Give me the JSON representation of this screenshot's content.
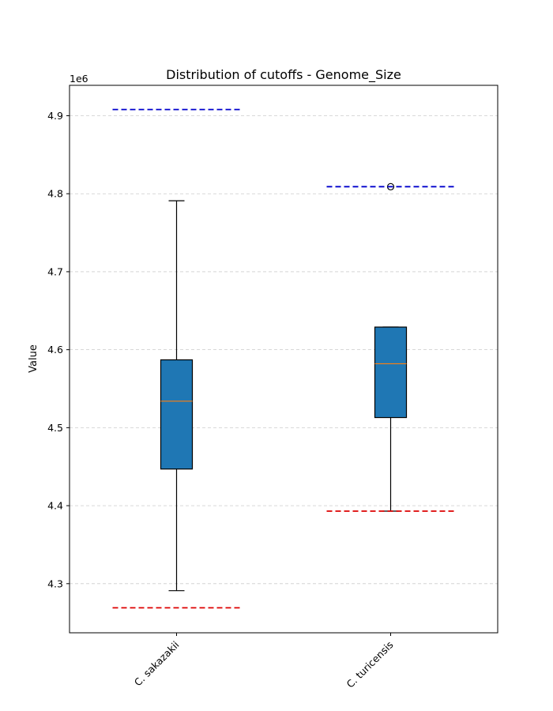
{
  "chart_data": {
    "type": "box",
    "title": "Distribution of cutoffs - Genome_Size",
    "xlabel": "",
    "ylabel": "Value",
    "offset_text": "1e6",
    "ylim": [
      4.237,
      4.939
    ],
    "yticks": [
      4.3,
      4.4,
      4.5,
      4.6,
      4.7,
      4.8,
      4.9
    ],
    "grid": "y-dashed",
    "categories": [
      "C. sakazakii",
      "C. turicensis"
    ],
    "boxes": [
      {
        "category": "C. sakazakii",
        "whisker_low": 4.291,
        "q1": 4.447,
        "median": 4.534,
        "q3": 4.587,
        "whisker_high": 4.791,
        "outliers": [],
        "upper_cutoff": 4.908,
        "lower_cutoff": 4.269
      },
      {
        "category": "C. turicensis",
        "whisker_low": 4.393,
        "q1": 4.513,
        "median": 4.582,
        "q3": 4.629,
        "whisker_high": 4.629,
        "outliers": [
          4.809
        ],
        "upper_cutoff": 4.809,
        "lower_cutoff": 4.393
      }
    ],
    "colors": {
      "box_fill": "#1f77b4",
      "median": "#ff7f0e",
      "upper_cutoff": "#0000cc",
      "lower_cutoff": "#dd0000",
      "grid": "#cccccc"
    }
  }
}
